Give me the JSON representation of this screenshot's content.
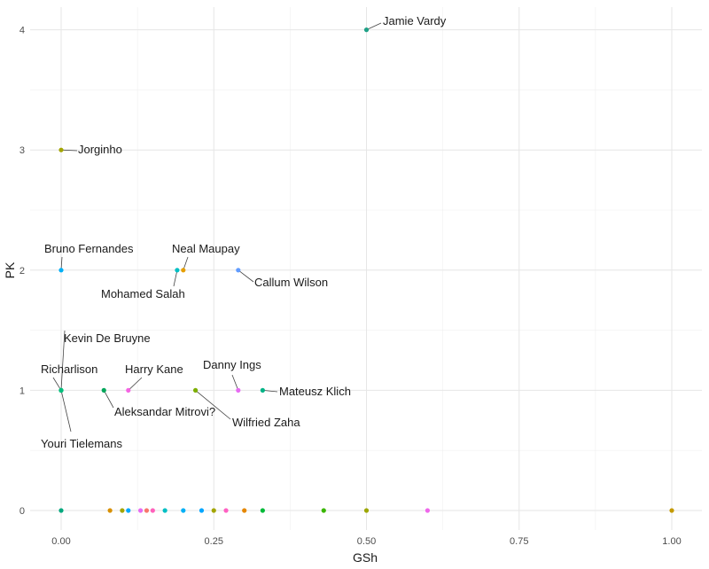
{
  "chart_data": {
    "type": "scatter",
    "xlabel": "GSh",
    "ylabel": "PK",
    "xlim": [
      -0.05,
      1.05
    ],
    "ylim": [
      -0.2,
      4.2
    ],
    "x_ticks": [
      0.0,
      0.25,
      0.5,
      0.75,
      1.0
    ],
    "x_tick_labels": [
      "0.00",
      "0.25",
      "0.50",
      "0.75",
      "1.00"
    ],
    "y_ticks": [
      0,
      1,
      2,
      3,
      4
    ],
    "y_tick_labels": [
      "0",
      "1",
      "2",
      "3",
      "4"
    ],
    "grid": true,
    "legend": "none",
    "labeled_points": [
      {
        "name": "Jamie Vardy",
        "x": 0.5,
        "y": 4,
        "color": "#1fa187"
      },
      {
        "name": "Jorginho",
        "x": 0.0,
        "y": 3,
        "color": "#a3a500"
      },
      {
        "name": "Bruno Fernandes",
        "x": 0.0,
        "y": 2,
        "color": "#00b0f6"
      },
      {
        "name": "Neal Maupay",
        "x": 0.2,
        "y": 2,
        "color": "#e69f00"
      },
      {
        "name": "Mohamed Salah",
        "x": 0.19,
        "y": 2,
        "color": "#00bfc4"
      },
      {
        "name": "Callum Wilson",
        "x": 0.29,
        "y": 2,
        "color": "#619cff"
      },
      {
        "name": "Kevin De Bruyne",
        "x": 0.0,
        "y": 1,
        "color": "#00bfc4"
      },
      {
        "name": "Richarlison",
        "x": 0.0,
        "y": 1,
        "color": "#00ba38"
      },
      {
        "name": "Youri Tielemans",
        "x": 0.0,
        "y": 1,
        "color": "#00bf7d"
      },
      {
        "name": "Harry Kane",
        "x": 0.11,
        "y": 1,
        "color": "#f564e3"
      },
      {
        "name": "Aleksandar Mitrovi?",
        "x": 0.07,
        "y": 1,
        "color": "#00a65a"
      },
      {
        "name": "Danny Ings",
        "x": 0.29,
        "y": 1,
        "color": "#e76bf3"
      },
      {
        "name": "Wilfried Zaha",
        "x": 0.22,
        "y": 1,
        "color": "#7cae00"
      },
      {
        "name": "Mateusz Klich",
        "x": 0.33,
        "y": 1,
        "color": "#00b386"
      }
    ],
    "unlabeled_points": [
      {
        "x": 0.0,
        "y": 0,
        "color": "#00a87e"
      },
      {
        "x": 0.08,
        "y": 0,
        "color": "#d89000"
      },
      {
        "x": 0.1,
        "y": 0,
        "color": "#a3a500"
      },
      {
        "x": 0.11,
        "y": 0,
        "color": "#00a9ff"
      },
      {
        "x": 0.13,
        "y": 0,
        "color": "#e76bf3"
      },
      {
        "x": 0.14,
        "y": 0,
        "color": "#f8766d"
      },
      {
        "x": 0.15,
        "y": 0,
        "color": "#ff62bc"
      },
      {
        "x": 0.17,
        "y": 0,
        "color": "#00bfc4"
      },
      {
        "x": 0.2,
        "y": 0,
        "color": "#00b0f6"
      },
      {
        "x": 0.23,
        "y": 0,
        "color": "#00a6ff"
      },
      {
        "x": 0.25,
        "y": 0,
        "color": "#a3a500"
      },
      {
        "x": 0.27,
        "y": 0,
        "color": "#ff61c3"
      },
      {
        "x": 0.3,
        "y": 0,
        "color": "#e58700"
      },
      {
        "x": 0.33,
        "y": 0,
        "color": "#00ba38"
      },
      {
        "x": 0.43,
        "y": 0,
        "color": "#39b600"
      },
      {
        "x": 0.5,
        "y": 0,
        "color": "#9da700"
      },
      {
        "x": 0.6,
        "y": 0,
        "color": "#ef67eb"
      },
      {
        "x": 1.0,
        "y": 0,
        "color": "#c49a00"
      }
    ]
  }
}
